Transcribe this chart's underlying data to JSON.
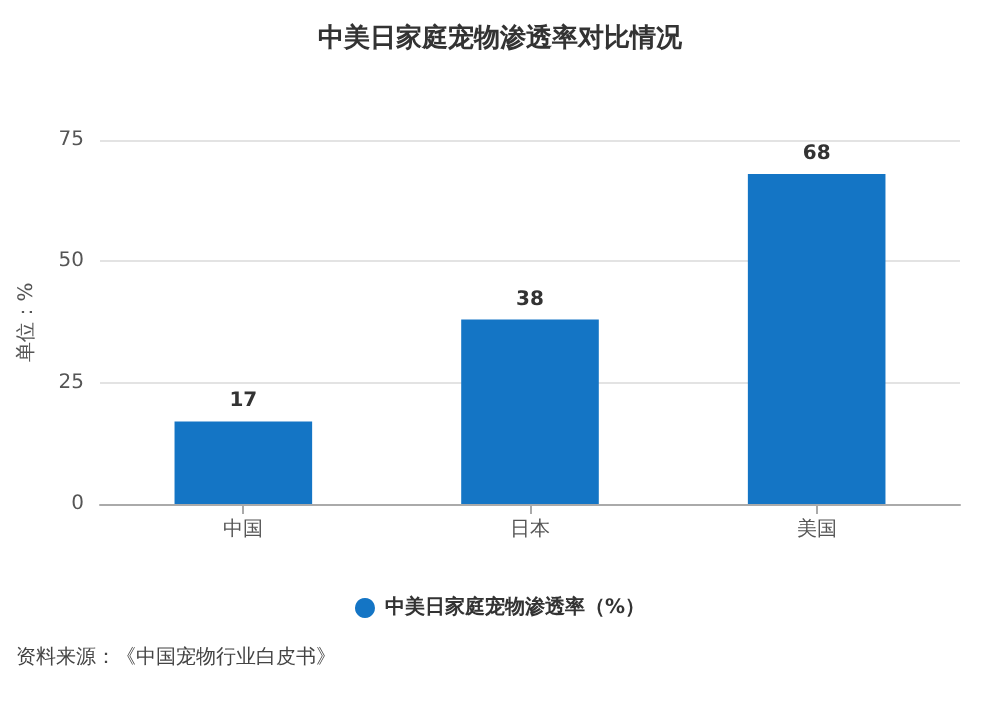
{
  "chart_data": {
    "type": "bar",
    "title": "中美日家庭宠物渗透率对比情况",
    "ylabel": "单位：%",
    "categories": [
      "中国",
      "日本",
      "美国"
    ],
    "series": [
      {
        "name": "中美日家庭宠物渗透率（%）",
        "color": "#1475c5",
        "values": [
          17,
          38,
          68
        ]
      }
    ],
    "ylim": [
      0,
      75
    ],
    "yticks": [
      0,
      25,
      50,
      75
    ],
    "grid": "y",
    "legend": "bottom",
    "data_labels": true,
    "annotations": [
      "资料来源：《中国宠物行业白皮书》"
    ]
  }
}
